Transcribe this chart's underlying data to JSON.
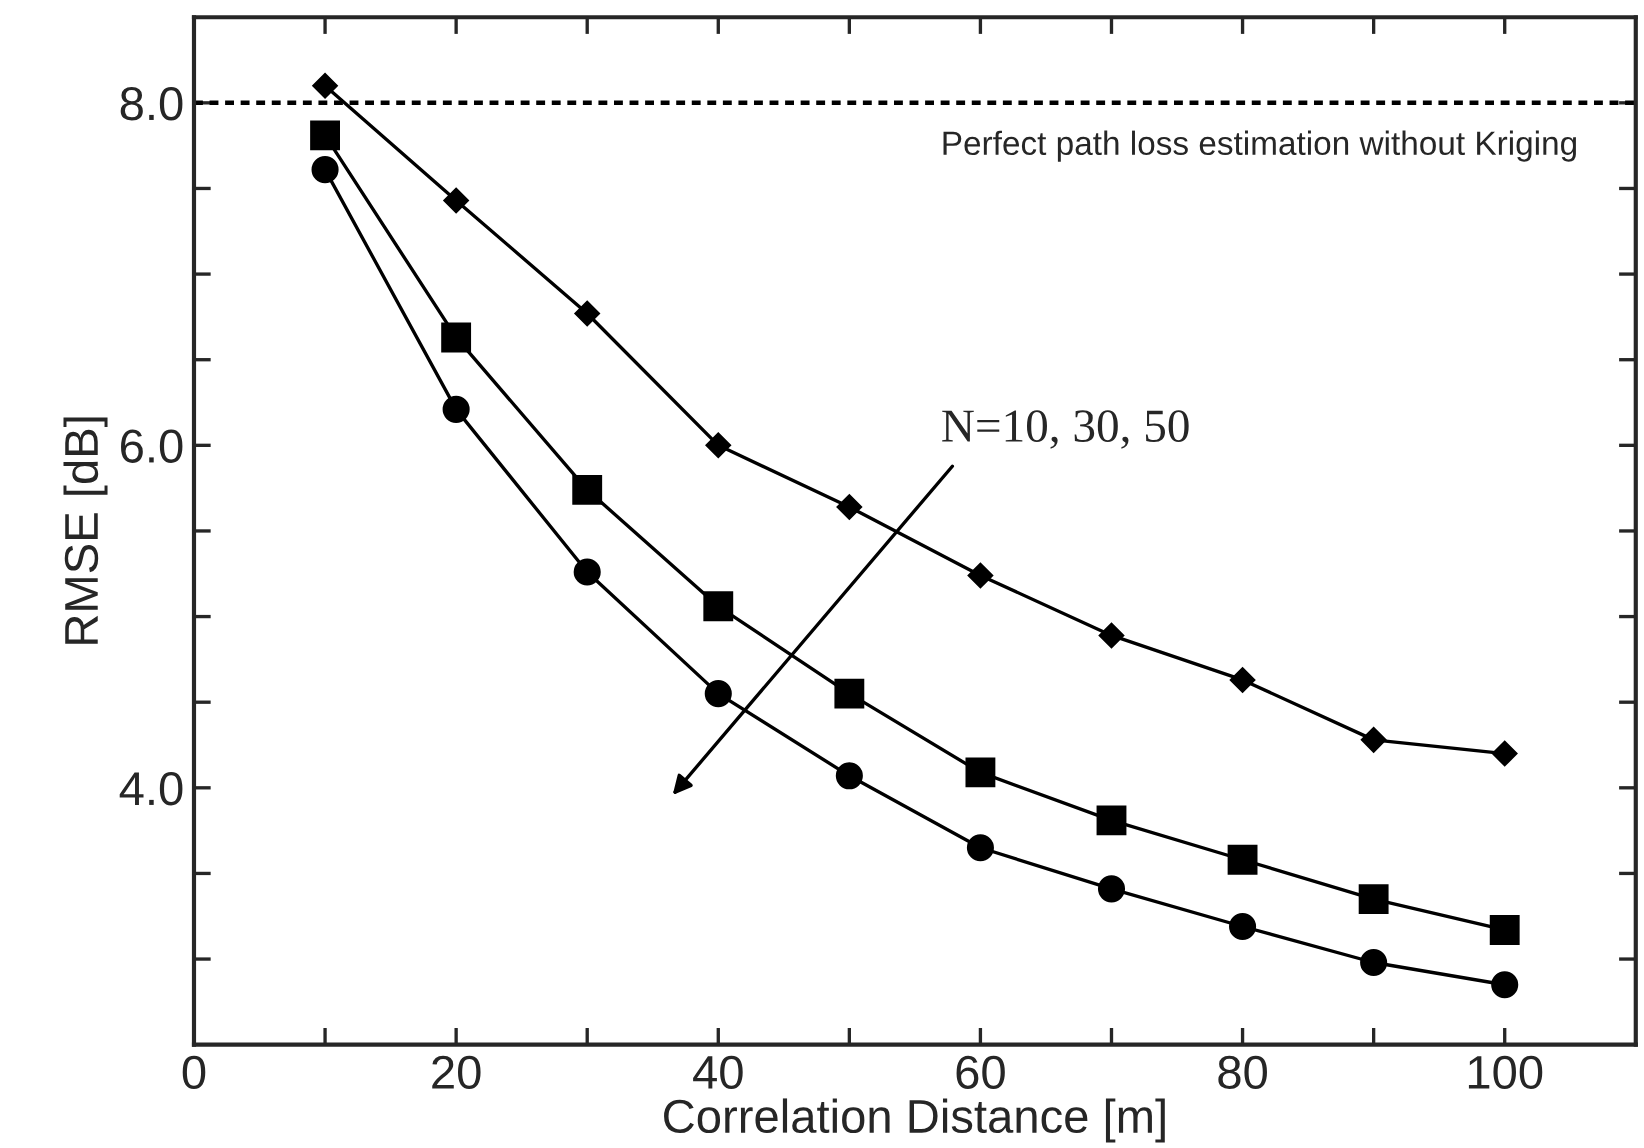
{
  "chart_data": {
    "type": "line",
    "xlabel": "Correlation Distance [m]",
    "ylabel": "RMSE [dB]",
    "x": [
      10,
      20,
      30,
      40,
      50,
      60,
      70,
      80,
      90,
      100
    ],
    "series": [
      {
        "color": "#000000",
        "marker": "diamond",
        "values": [
          8.1,
          7.43,
          6.77,
          6.0,
          5.64,
          5.24,
          4.89,
          4.63,
          4.28,
          4.2
        ]
      },
      {
        "color": "#000000",
        "marker": "square",
        "values": [
          7.81,
          6.63,
          5.74,
          5.06,
          4.55,
          4.09,
          3.81,
          3.58,
          3.35,
          3.17
        ]
      },
      {
        "color": "#000000",
        "marker": "circle",
        "values": [
          7.61,
          6.21,
          5.26,
          4.55,
          4.07,
          3.65,
          3.41,
          3.19,
          2.98,
          2.85
        ]
      }
    ],
    "xlim": [
      0,
      110
    ],
    "ylim": [
      2.5,
      8.5
    ],
    "xticks": [
      0,
      {
        "value": 10,
        "label": null
      },
      20,
      {
        "value": 30,
        "label": null
      },
      40,
      {
        "value": 50,
        "label": null
      },
      60,
      {
        "value": 70,
        "label": null
      },
      80,
      {
        "value": 90,
        "label": null
      },
      100
    ],
    "yticks": [
      {
        "value": 3.0,
        "label": null
      },
      {
        "value": 3.5,
        "label": null
      },
      {
        "value": 4.0,
        "label": "4.0"
      },
      {
        "value": 4.5,
        "label": null
      },
      {
        "value": 5.0,
        "label": null
      },
      {
        "value": 5.5,
        "label": null
      },
      {
        "value": 6.0,
        "label": "6.0"
      },
      {
        "value": 6.5,
        "label": null
      },
      {
        "value": 7.0,
        "label": null
      },
      {
        "value": 7.5,
        "label": null
      },
      {
        "value": 8.0,
        "label": "8.0"
      }
    ],
    "ref_lines": [
      {
        "axis": "y",
        "value": 8.0,
        "label": "Perfect path loss estimation without Kriging",
        "color": "#000000",
        "line_style": "dotted"
      }
    ],
    "annotations": [
      "N=10, 30, 50"
    ],
    "line_style": "solid",
    "grid": false,
    "legend": false
  }
}
